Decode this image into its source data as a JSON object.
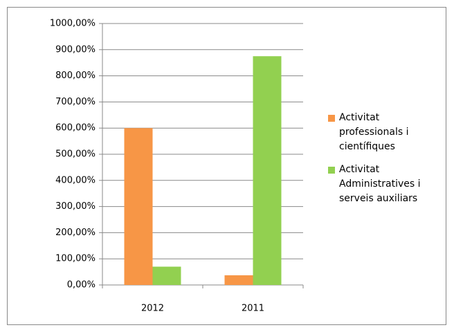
{
  "chart_data": {
    "type": "bar",
    "categories": [
      "2012",
      "2011"
    ],
    "series": [
      {
        "name": "Activitat professionals i científiques",
        "color": "#f79646",
        "values": [
          600,
          37
        ]
      },
      {
        "name": "Activitat Administratives i serveis auxiliars",
        "color": "#92d050",
        "values": [
          70,
          875
        ]
      }
    ],
    "ylim": [
      0,
      1000
    ],
    "yticks": [
      {
        "value": 0,
        "label": "0,00%"
      },
      {
        "value": 100,
        "label": "100,00%"
      },
      {
        "value": 200,
        "label": "200,00%"
      },
      {
        "value": 300,
        "label": "300,00%"
      },
      {
        "value": 400,
        "label": "400,00%"
      },
      {
        "value": 500,
        "label": "500,00%"
      },
      {
        "value": 600,
        "label": "600,00%"
      },
      {
        "value": 700,
        "label": "700,00%"
      },
      {
        "value": 800,
        "label": "800,00%"
      },
      {
        "value": 900,
        "label": "900,00%"
      },
      {
        "value": 1000,
        "label": "1000,00%"
      }
    ],
    "grid": true,
    "legend": "right"
  }
}
